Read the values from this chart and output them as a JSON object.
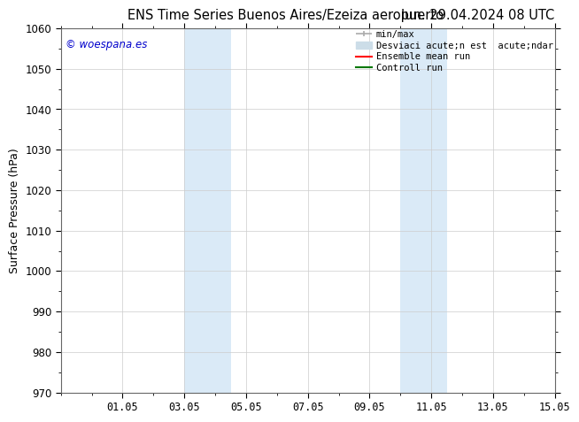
{
  "title_left": "ENS Time Series Buenos Aires/Ezeiza aeropuerto",
  "title_right": "lun. 29.04.2024 08 UTC",
  "ylabel": "Surface Pressure (hPa)",
  "ylim": [
    970,
    1060
  ],
  "yticks": [
    970,
    980,
    990,
    1000,
    1010,
    1020,
    1030,
    1040,
    1050,
    1060
  ],
  "xtick_labels": [
    "01.05",
    "03.05",
    "05.05",
    "07.05",
    "09.05",
    "11.05",
    "13.05",
    "15.05"
  ],
  "xtick_positions": [
    2,
    4,
    6,
    8,
    10,
    12,
    14,
    16
  ],
  "shaded_regions": [
    {
      "x_start": 4.0,
      "x_end": 5.5,
      "color": "#daeaf7"
    },
    {
      "x_start": 11.0,
      "x_end": 12.5,
      "color": "#daeaf7"
    }
  ],
  "watermark_text": "© woespana.es",
  "watermark_color": "#0000cc",
  "legend_label_0": "min/max",
  "legend_label_1": "Desviaci acute;n est  acute;ndar",
  "legend_label_2": "Ensemble mean run",
  "legend_label_3": "Controll run",
  "legend_color_0": "#aaaaaa",
  "legend_color_1": "#ccdde8",
  "legend_color_2": "#ff0000",
  "legend_color_3": "#007700",
  "bg_color": "#ffffff",
  "grid_color": "#cccccc",
  "title_fontsize": 10.5,
  "tick_fontsize": 8.5,
  "ylabel_fontsize": 9,
  "watermark_fontsize": 8.5,
  "legend_fontsize": 7.5
}
